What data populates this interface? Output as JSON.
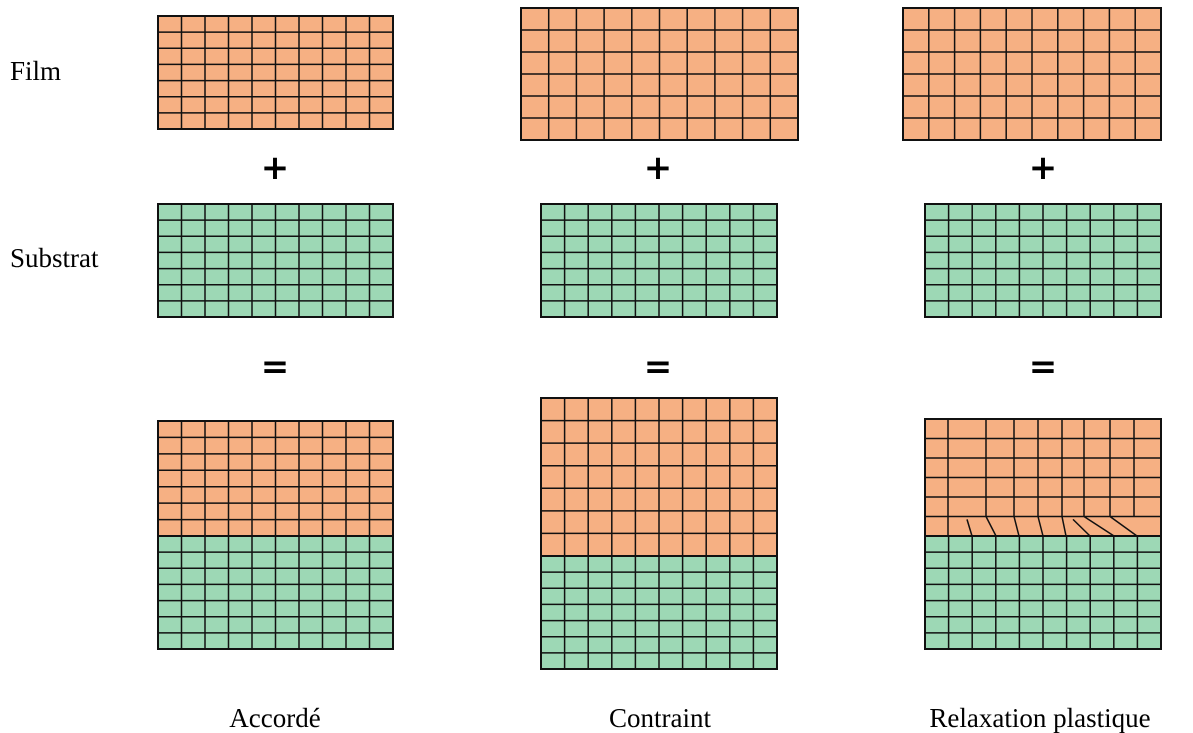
{
  "row_labels": {
    "film": "Film",
    "substrat": "Substrat"
  },
  "operators": {
    "plus": "+",
    "equals": "="
  },
  "columns": [
    {
      "id": "accorde",
      "caption": "Accordé"
    },
    {
      "id": "contraint",
      "caption": "Contraint"
    },
    {
      "id": "relaxation",
      "caption": "Relaxation plastique"
    }
  ],
  "colors": {
    "film": "#f6b083",
    "substrat": "#9dd8b5",
    "line": "#111111"
  }
}
